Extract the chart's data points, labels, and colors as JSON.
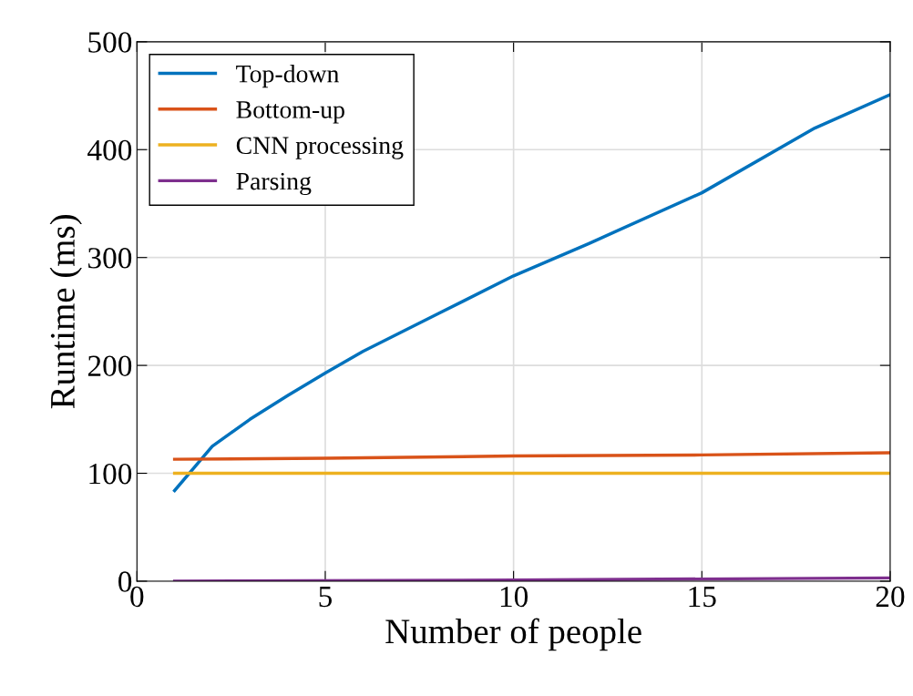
{
  "chart_data": {
    "type": "line",
    "xlabel": "Number of people",
    "ylabel": "Runtime (ms)",
    "xlim": [
      0,
      20
    ],
    "xticks": [
      0,
      5,
      10,
      15,
      20
    ],
    "ylim": [
      0,
      500
    ],
    "yticks": [
      0,
      100,
      200,
      300,
      400,
      500
    ],
    "grid": true,
    "legend": "top left",
    "marker": "none",
    "line_style": "solid",
    "series": [
      {
        "name": "Top-down",
        "color": "#0072bd",
        "x": [
          1,
          2,
          3,
          4,
          5,
          6,
          8,
          10,
          12,
          15,
          18,
          20
        ],
        "values": [
          84,
          125,
          150,
          172,
          193,
          213,
          248,
          283,
          313,
          360,
          420,
          451
        ]
      },
      {
        "name": "Bottom-up",
        "color": "#d95319",
        "x": [
          1,
          5,
          10,
          15,
          20
        ],
        "values": [
          113,
          114,
          116,
          117,
          119
        ]
      },
      {
        "name": "CNN processing",
        "color": "#edb120",
        "x": [
          1,
          20
        ],
        "values": [
          100,
          100
        ]
      },
      {
        "name": "Parsing",
        "color": "#7e2f8e",
        "x": [
          1,
          10,
          20
        ],
        "values": [
          0,
          1,
          3
        ]
      }
    ]
  }
}
